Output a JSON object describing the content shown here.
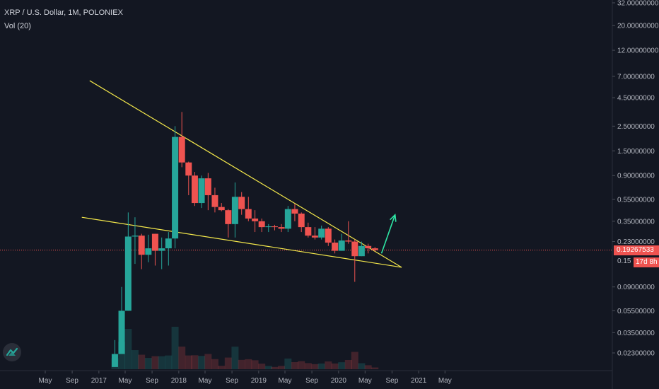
{
  "header": {
    "symbol_line": "XRP / U.S. Dollar, 1M, POLONIEX",
    "volume_line": "Vol (20)"
  },
  "price_tag": {
    "value": "0.19267533",
    "countdown": "17d 8h",
    "partial_price_label": "0.15"
  },
  "colors": {
    "background": "#131722",
    "up": "#26a69a",
    "down": "#ef5350",
    "trendline": "#f5e94b",
    "arrow": "#2ee6a4",
    "price_line": "#ef5350",
    "axis_text": "#b2b5be"
  },
  "logo_icon": "tradingview-logo-icon",
  "chart_data": {
    "type": "candlestick",
    "title": "XRP / U.S. Dollar, 1M, POLONIEX",
    "y_scale": "log",
    "y_tick_labels": [
      "32.00000000",
      "20.00000000",
      "12.00000000",
      "7.00000000",
      "4.50000000",
      "2.50000000",
      "1.50000000",
      "0.90000000",
      "0.55000000",
      "0.35000000",
      "0.23000000",
      "0.09000000",
      "0.05500000",
      "0.03500000",
      "0.02300000"
    ],
    "y_ticks": [
      32,
      20,
      12,
      7,
      4.5,
      2.5,
      1.5,
      0.9,
      0.55,
      0.35,
      0.23,
      0.09,
      0.055,
      0.035,
      0.023
    ],
    "x_tick_labels": [
      "May",
      "Sep",
      "2017",
      "May",
      "Sep",
      "2018",
      "May",
      "Sep",
      "2019",
      "May",
      "Sep",
      "2020",
      "May",
      "Sep",
      "2021",
      "May"
    ],
    "last_price": 0.19267533,
    "candles": [
      {
        "date": "2017-03",
        "open": 0.0172,
        "high": 0.03,
        "low": 0.0172,
        "close": 0.0225
      },
      {
        "date": "2017-04",
        "open": 0.0225,
        "high": 0.09,
        "low": 0.0225,
        "close": 0.055
      },
      {
        "date": "2017-05",
        "open": 0.055,
        "high": 0.42,
        "low": 0.055,
        "close": 0.255
      },
      {
        "date": "2017-06",
        "open": 0.255,
        "high": 0.38,
        "low": 0.145,
        "close": 0.26
      },
      {
        "date": "2017-07",
        "open": 0.26,
        "high": 0.27,
        "low": 0.13,
        "close": 0.175
      },
      {
        "date": "2017-08",
        "open": 0.175,
        "high": 0.265,
        "low": 0.15,
        "close": 0.2
      },
      {
        "date": "2017-09",
        "open": 0.27,
        "high": 0.27,
        "low": 0.14,
        "close": 0.19
      },
      {
        "date": "2017-10",
        "open": 0.19,
        "high": 0.25,
        "low": 0.13,
        "close": 0.2
      },
      {
        "date": "2017-11",
        "open": 0.2,
        "high": 0.28,
        "low": 0.14,
        "close": 0.245
      },
      {
        "date": "2017-12",
        "open": 0.245,
        "high": 2.5,
        "low": 0.2,
        "close": 2.0
      },
      {
        "date": "2018-01",
        "open": 2.0,
        "high": 3.35,
        "low": 1.07,
        "close": 1.18
      },
      {
        "date": "2018-02",
        "open": 1.18,
        "high": 1.2,
        "low": 0.6,
        "close": 0.9
      },
      {
        "date": "2018-03",
        "open": 0.9,
        "high": 0.97,
        "low": 0.48,
        "close": 0.51
      },
      {
        "date": "2018-04",
        "open": 0.51,
        "high": 0.9,
        "low": 0.46,
        "close": 0.85
      },
      {
        "date": "2018-05",
        "open": 0.85,
        "high": 0.95,
        "low": 0.44,
        "close": 0.6
      },
      {
        "date": "2018-06",
        "open": 0.6,
        "high": 0.7,
        "low": 0.42,
        "close": 0.47
      },
      {
        "date": "2018-07",
        "open": 0.47,
        "high": 0.51,
        "low": 0.43,
        "close": 0.44
      },
      {
        "date": "2018-08",
        "open": 0.44,
        "high": 0.45,
        "low": 0.25,
        "close": 0.33
      },
      {
        "date": "2018-09",
        "open": 0.33,
        "high": 0.78,
        "low": 0.25,
        "close": 0.58
      },
      {
        "date": "2018-10",
        "open": 0.58,
        "high": 0.64,
        "low": 0.4,
        "close": 0.45
      },
      {
        "date": "2018-11",
        "open": 0.45,
        "high": 0.58,
        "low": 0.35,
        "close": 0.37
      },
      {
        "date": "2018-12",
        "open": 0.37,
        "high": 0.44,
        "low": 0.28,
        "close": 0.35
      },
      {
        "date": "2019-01",
        "open": 0.35,
        "high": 0.37,
        "low": 0.28,
        "close": 0.31
      },
      {
        "date": "2019-02",
        "open": 0.31,
        "high": 0.33,
        "low": 0.28,
        "close": 0.315
      },
      {
        "date": "2019-03",
        "open": 0.315,
        "high": 0.325,
        "low": 0.29,
        "close": 0.31
      },
      {
        "date": "2019-04",
        "open": 0.31,
        "high": 0.33,
        "low": 0.28,
        "close": 0.3
      },
      {
        "date": "2019-05",
        "open": 0.3,
        "high": 0.48,
        "low": 0.28,
        "close": 0.45
      },
      {
        "date": "2019-06",
        "open": 0.45,
        "high": 0.5,
        "low": 0.35,
        "close": 0.41
      },
      {
        "date": "2019-07",
        "open": 0.41,
        "high": 0.42,
        "low": 0.28,
        "close": 0.31
      },
      {
        "date": "2019-08",
        "open": 0.31,
        "high": 0.34,
        "low": 0.25,
        "close": 0.26
      },
      {
        "date": "2019-09",
        "open": 0.26,
        "high": 0.31,
        "low": 0.24,
        "close": 0.25
      },
      {
        "date": "2019-10",
        "open": 0.25,
        "high": 0.32,
        "low": 0.24,
        "close": 0.3
      },
      {
        "date": "2019-11",
        "open": 0.3,
        "high": 0.31,
        "low": 0.21,
        "close": 0.225
      },
      {
        "date": "2019-12",
        "open": 0.225,
        "high": 0.24,
        "low": 0.18,
        "close": 0.19
      },
      {
        "date": "2020-01",
        "open": 0.19,
        "high": 0.27,
        "low": 0.19,
        "close": 0.235
      },
      {
        "date": "2020-02",
        "open": 0.235,
        "high": 0.35,
        "low": 0.22,
        "close": 0.23
      },
      {
        "date": "2020-03",
        "open": 0.23,
        "high": 0.24,
        "low": 0.1,
        "close": 0.17
      },
      {
        "date": "2020-04",
        "open": 0.17,
        "high": 0.23,
        "low": 0.17,
        "close": 0.21
      },
      {
        "date": "2020-05",
        "open": 0.21,
        "high": 0.22,
        "low": 0.18,
        "close": 0.2
      },
      {
        "date": "2020-06",
        "open": 0.2,
        "high": 0.205,
        "low": 0.188,
        "close": 0.1927
      }
    ],
    "annotations": [
      {
        "type": "trendline",
        "from": {
          "date": "2016-11-20",
          "price": 6.4
        },
        "to": {
          "date": "2020-10-15",
          "price": 0.135
        }
      },
      {
        "type": "trendline",
        "from": {
          "date": "2016-10-15",
          "price": 0.38
        },
        "to": {
          "date": "2020-10-15",
          "price": 0.135
        }
      },
      {
        "type": "arrow",
        "from": {
          "date": "2020-07",
          "price": 0.18
        },
        "to": {
          "date": "2020-09",
          "price": 0.4
        }
      }
    ]
  }
}
